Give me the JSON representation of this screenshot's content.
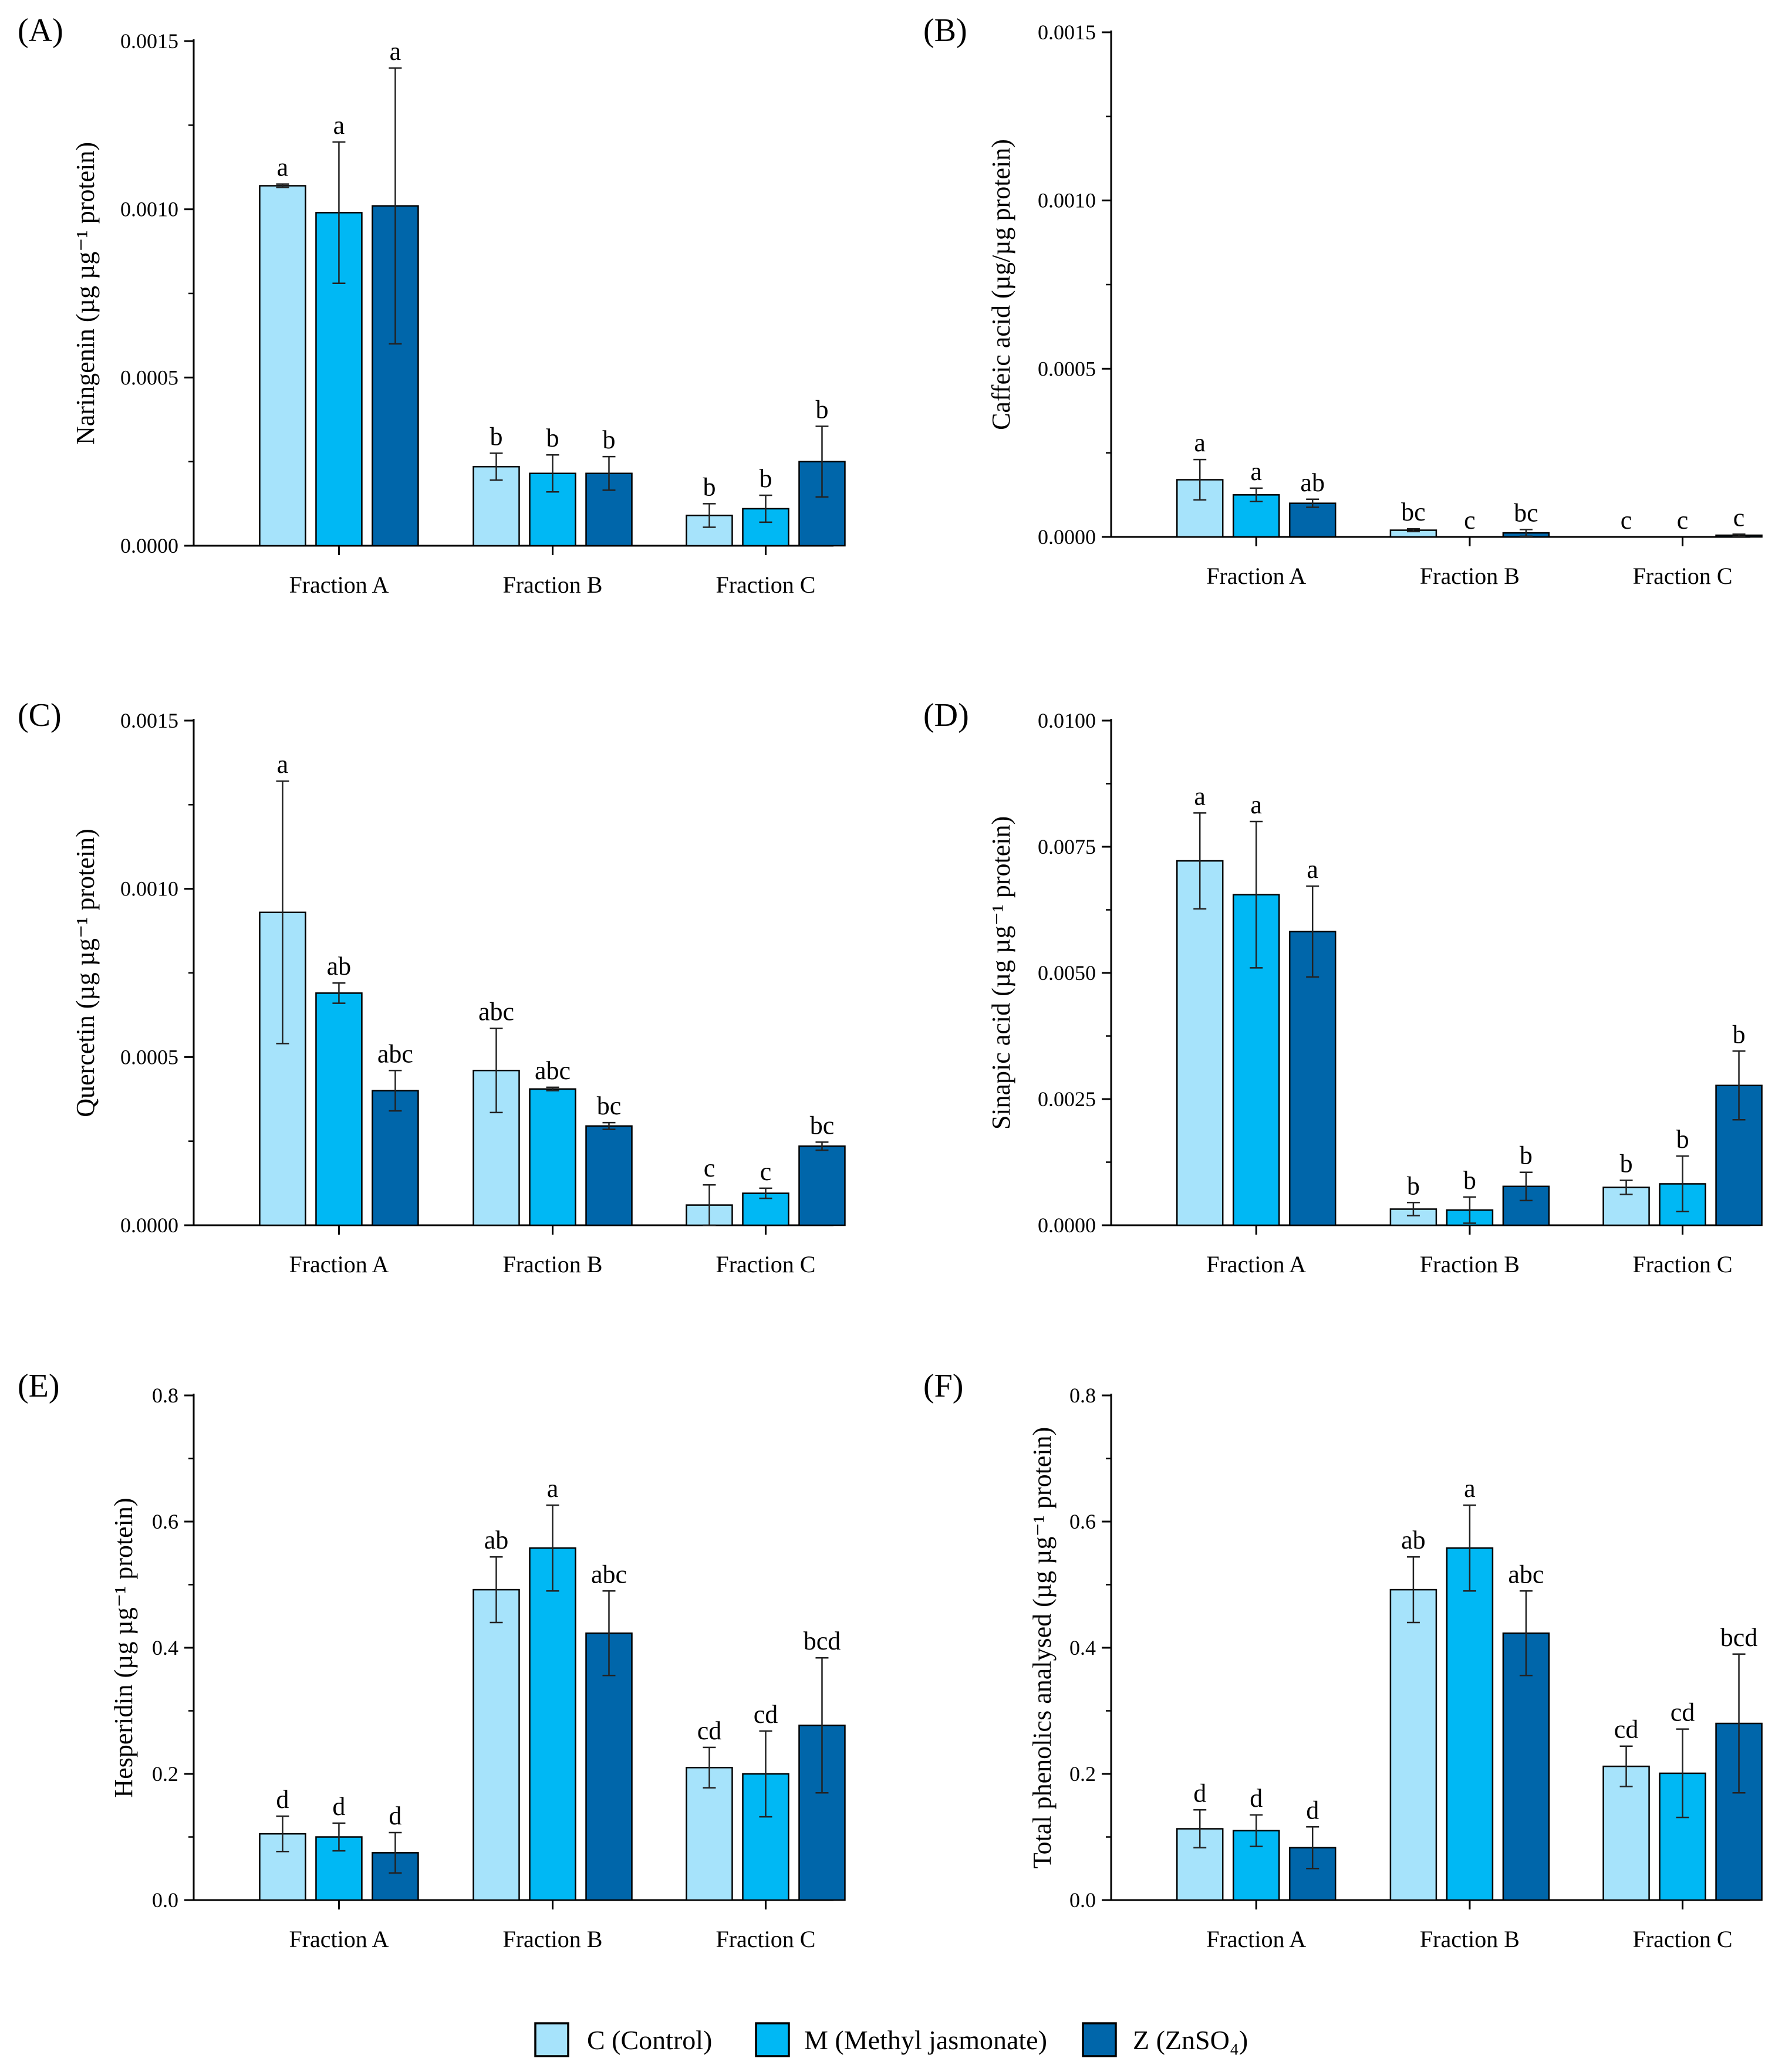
{
  "legend": {
    "items": [
      {
        "label": "C (Control)",
        "color": "#a6e3fb"
      },
      {
        "label": "M (Methyl jasmonate)",
        "color": "#00b8f4"
      },
      {
        "label": "Z (ZnSO₄)",
        "color": "#0066aa"
      }
    ]
  },
  "chart_data": [
    {
      "panel": "(A)",
      "type": "bar",
      "ylabel": "Naringenin (µg µg⁻¹ protein)",
      "ylim": [
        0,
        0.0015
      ],
      "yticks": [
        "0.0000",
        "0.0005",
        "0.0010",
        "0.0015"
      ],
      "categories": [
        "Fraction  A",
        "Fraction  B",
        "Fraction  C"
      ],
      "series": [
        {
          "name": "C (Control)",
          "values": [
            0.00107,
            0.000235,
            9e-05
          ],
          "errors": [
            5e-06,
            4e-05,
            3.5e-05
          ],
          "labels": [
            "a",
            "b",
            "b"
          ]
        },
        {
          "name": "M (Methyl jasmonate)",
          "values": [
            0.00099,
            0.000215,
            0.00011
          ],
          "errors": [
            0.00021,
            5.5e-05,
            4e-05
          ],
          "labels": [
            "a",
            "b",
            "b"
          ]
        },
        {
          "name": "Z (ZnSO₄)",
          "values": [
            0.00101,
            0.000215,
            0.00025
          ],
          "errors": [
            0.00041,
            5e-05,
            0.000105
          ],
          "labels": [
            "a",
            "b",
            "b"
          ]
        }
      ]
    },
    {
      "panel": "(B)",
      "type": "bar",
      "ylabel": "Caffeic acid (µg/µg protein)",
      "ylim": [
        0,
        0.0015
      ],
      "yticks": [
        "0.0000",
        "0.0005",
        "0.0010",
        "0.0015"
      ],
      "categories": [
        "Fraction  A",
        "Fraction  B",
        "Fraction  C"
      ],
      "series": [
        {
          "name": "C (Control)",
          "values": [
            0.00017,
            2e-05,
            0.0
          ],
          "errors": [
            6e-05,
            4e-06,
            0.0
          ],
          "labels": [
            "a",
            "bc",
            "c"
          ]
        },
        {
          "name": "M (Methyl jasmonate)",
          "values": [
            0.000125,
            0.0,
            0.0
          ],
          "errors": [
            2e-05,
            0.0,
            0.0
          ],
          "labels": [
            "a",
            "c",
            "c"
          ]
        },
        {
          "name": "Z (ZnSO₄)",
          "values": [
            0.0001,
            1.2e-05,
            5e-06
          ],
          "errors": [
            1.2e-05,
            1e-05,
            3e-06
          ],
          "labels": [
            "ab",
            "bc",
            "c"
          ]
        }
      ]
    },
    {
      "panel": "(C)",
      "type": "bar",
      "ylabel": "Quercetin (µg µg⁻¹ protein)",
      "ylim": [
        0,
        0.0015
      ],
      "yticks": [
        "0.0000",
        "0.0005",
        "0.0010",
        "0.0015"
      ],
      "categories": [
        "Fraction  A",
        "Fraction  B",
        "Fraction  C"
      ],
      "series": [
        {
          "name": "C (Control)",
          "values": [
            0.00093,
            0.00046,
            6e-05
          ],
          "errors": [
            0.00039,
            0.000125,
            6e-05
          ],
          "labels": [
            "a",
            "abc",
            "c"
          ]
        },
        {
          "name": "M (Methyl jasmonate)",
          "values": [
            0.00069,
            0.000405,
            9.5e-05
          ],
          "errors": [
            3e-05,
            5e-06,
            1.5e-05
          ],
          "labels": [
            "ab",
            "abc",
            "c"
          ]
        },
        {
          "name": "Z (ZnSO₄)",
          "values": [
            0.0004,
            0.000295,
            0.000235
          ],
          "errors": [
            6e-05,
            1e-05,
            1.2e-05
          ],
          "labels": [
            "abc",
            "bc",
            "bc"
          ]
        }
      ]
    },
    {
      "panel": "(D)",
      "type": "bar",
      "ylabel": "Sinapic acid (µg µg⁻¹ protein)",
      "ylim": [
        0,
        0.01
      ],
      "yticks": [
        "0.0000",
        "0.0025",
        "0.0050",
        "0.0075",
        "0.0100"
      ],
      "categories": [
        "Fraction  A",
        "Fraction  B",
        "Fraction  C"
      ],
      "series": [
        {
          "name": "C (Control)",
          "values": [
            0.00722,
            0.00032,
            0.00075
          ],
          "errors": [
            0.00095,
            0.00013,
            0.00014
          ],
          "labels": [
            "a",
            "b",
            "b"
          ]
        },
        {
          "name": "M (Methyl jasmonate)",
          "values": [
            0.00655,
            0.0003,
            0.00082
          ],
          "errors": [
            0.00145,
            0.00026,
            0.00055
          ],
          "labels": [
            "a",
            "b",
            "b"
          ]
        },
        {
          "name": "Z (ZnSO₄)",
          "values": [
            0.00582,
            0.00077,
            0.00277
          ],
          "errors": [
            0.0009,
            0.00028,
            0.00068
          ],
          "labels": [
            "a",
            "b",
            "b"
          ]
        }
      ]
    },
    {
      "panel": "(E)",
      "type": "bar",
      "ylabel": "Hesperidin (µg µg⁻¹ protein)",
      "ylim": [
        0,
        0.8
      ],
      "yticks": [
        "0.0",
        "0.2",
        "0.4",
        "0.6",
        "0.8"
      ],
      "categories": [
        "Fraction  A",
        "Fraction  B",
        "Fraction  C"
      ],
      "series": [
        {
          "name": "C (Control)",
          "values": [
            0.105,
            0.492,
            0.21
          ],
          "errors": [
            0.028,
            0.052,
            0.032
          ],
          "labels": [
            "d",
            "ab",
            "cd"
          ]
        },
        {
          "name": "M (Methyl jasmonate)",
          "values": [
            0.1,
            0.558,
            0.2
          ],
          "errors": [
            0.022,
            0.068,
            0.068
          ],
          "labels": [
            "d",
            "a",
            "cd"
          ]
        },
        {
          "name": "Z (ZnSO₄)",
          "values": [
            0.075,
            0.423,
            0.277
          ],
          "errors": [
            0.032,
            0.067,
            0.107
          ],
          "labels": [
            "d",
            "abc",
            "bcd"
          ]
        }
      ]
    },
    {
      "panel": "(F)",
      "type": "bar",
      "ylabel": "Total phenolics analysed (µg µg⁻¹ protein)",
      "ylim": [
        0,
        0.8
      ],
      "yticks": [
        "0.0",
        "0.2",
        "0.4",
        "0.6",
        "0.8"
      ],
      "categories": [
        "Fraction  A",
        "Fraction  B",
        "Fraction  C"
      ],
      "series": [
        {
          "name": "C (Control)",
          "values": [
            0.113,
            0.492,
            0.212
          ],
          "errors": [
            0.03,
            0.052,
            0.032
          ],
          "labels": [
            "d",
            "ab",
            "cd"
          ]
        },
        {
          "name": "M (Methyl jasmonate)",
          "values": [
            0.11,
            0.558,
            0.201
          ],
          "errors": [
            0.025,
            0.068,
            0.07
          ],
          "labels": [
            "d",
            "a",
            "cd"
          ]
        },
        {
          "name": "Z (ZnSO₄)",
          "values": [
            0.083,
            0.423,
            0.28
          ],
          "errors": [
            0.033,
            0.067,
            0.11
          ],
          "labels": [
            "d",
            "abc",
            "bcd"
          ]
        }
      ]
    }
  ]
}
